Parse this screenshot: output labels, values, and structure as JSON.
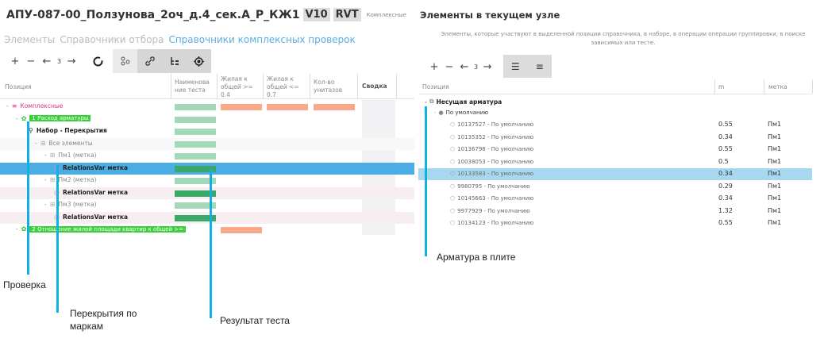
{
  "left": {
    "title": "АПУ-087-00_Ползунова_2оч_д.4_сек.А_Р_КЖ1",
    "badges": [
      "V10",
      "RVT"
    ],
    "subtitle": "Комплексные",
    "tabs": [
      {
        "label": "Элементы",
        "active": false
      },
      {
        "label": "Справочники отбора",
        "active": false
      },
      {
        "label": "Справочники комплексных проверок",
        "active": true
      }
    ],
    "toolbar": {
      "plus": "+",
      "minus": "−",
      "back": "←",
      "level": "3",
      "fwd": "→"
    },
    "columns": [
      "Позиция",
      "Наименова ние теста",
      "Жилая к общей >= 0.4",
      "Жилая к общей <= 0.7",
      "Кол-во унитазов",
      "Сводка"
    ],
    "rows": [
      {
        "label": "Комплексные",
        "indent": 0,
        "icon": "database-icon",
        "style": "pink",
        "bars": [
          "light",
          "orange",
          "orange",
          "orange"
        ]
      },
      {
        "label": "1 Расход арматуры",
        "indent": 1,
        "icon": "group-icon",
        "style": "tag",
        "bars": [
          "light"
        ]
      },
      {
        "label": "Набор - Перекрытия",
        "indent": 2,
        "icon": "link-icon",
        "style": "bold",
        "bars": [
          "light"
        ]
      },
      {
        "label": "Все элементы",
        "indent": 3,
        "icon": "tree-icon",
        "style": "grey",
        "bars": [
          "light"
        ]
      },
      {
        "label": "Пм1 (метка)",
        "indent": 4,
        "icon": "tree-icon",
        "style": "grey",
        "bars": [
          "light"
        ]
      },
      {
        "label": "RelationsVar метка",
        "indent": 5,
        "icon": "target-icon",
        "style": "bold",
        "bars": [
          "dark"
        ],
        "selected": true
      },
      {
        "label": "Пм2 (метка)",
        "indent": 4,
        "icon": "tree-icon",
        "style": "grey",
        "bars": [
          "light"
        ]
      },
      {
        "label": "RelationsVar метка",
        "indent": 5,
        "icon": "target-icon",
        "style": "bold",
        "bars": [
          "dark"
        ],
        "pinkbg": true
      },
      {
        "label": "Пм3 (метка)",
        "indent": 4,
        "icon": "tree-icon",
        "style": "grey",
        "bars": [
          "light"
        ]
      },
      {
        "label": "RelationsVar метка",
        "indent": 5,
        "icon": "target-icon",
        "style": "bold",
        "bars": [
          "dark"
        ],
        "pinkbg": true
      },
      {
        "label": "2 Отношение жилой площади квартир к общей >=",
        "indent": 1,
        "icon": "group-icon",
        "style": "tag",
        "bars": [
          "none",
          "orange"
        ]
      }
    ]
  },
  "right": {
    "title": "Элементы в текущем узле",
    "description": "Элементы, которые участвуют в выделенной позиции справочника, в наборе, в операции операции группировки, в поиске зависимых или тесте.",
    "toolbar": {
      "plus": "+",
      "minus": "−",
      "back": "←",
      "level": "3",
      "fwd": "→"
    },
    "columns": [
      "Позиция",
      "m",
      "метка"
    ],
    "root": "Несущая арматура",
    "group": "По умолчанию",
    "rows": [
      {
        "name": "10137527 - По умолчанию",
        "m": "0.55",
        "mark": "Пм1"
      },
      {
        "name": "10135352 - По умолчанию",
        "m": "0.34",
        "mark": "Пм1"
      },
      {
        "name": "10136798 - По умолчанию",
        "m": "0.55",
        "mark": "Пм1"
      },
      {
        "name": "10038053 - По умолчанию",
        "m": "0.5",
        "mark": "Пм1"
      },
      {
        "name": "10133583 - По умолчанию",
        "m": "0.34",
        "mark": "Пм1",
        "selected": true
      },
      {
        "name": "9980795 - По умолчанию",
        "m": "0.29",
        "mark": "Пм1"
      },
      {
        "name": "10145663 - По умолчанию",
        "m": "0.34",
        "mark": "Пм1"
      },
      {
        "name": "9977929 - По умолчанию",
        "m": "1.32",
        "mark": "Пм1"
      },
      {
        "name": "10134123 - По умолчанию",
        "m": "0.55",
        "mark": "Пм1"
      }
    ]
  },
  "annotations": {
    "check": "Проверка",
    "slabs": "Перекрытия по маркам",
    "result": "Результат теста",
    "rebar": "Арматура в плите"
  },
  "colors": {
    "accent": "#0fb0e6",
    "selected": "#4aaee4",
    "selected_right": "#a8d8f0",
    "pass_light": "#a3d9b8",
    "pass_dark": "#3aa867",
    "fail": "#f9a88a"
  }
}
